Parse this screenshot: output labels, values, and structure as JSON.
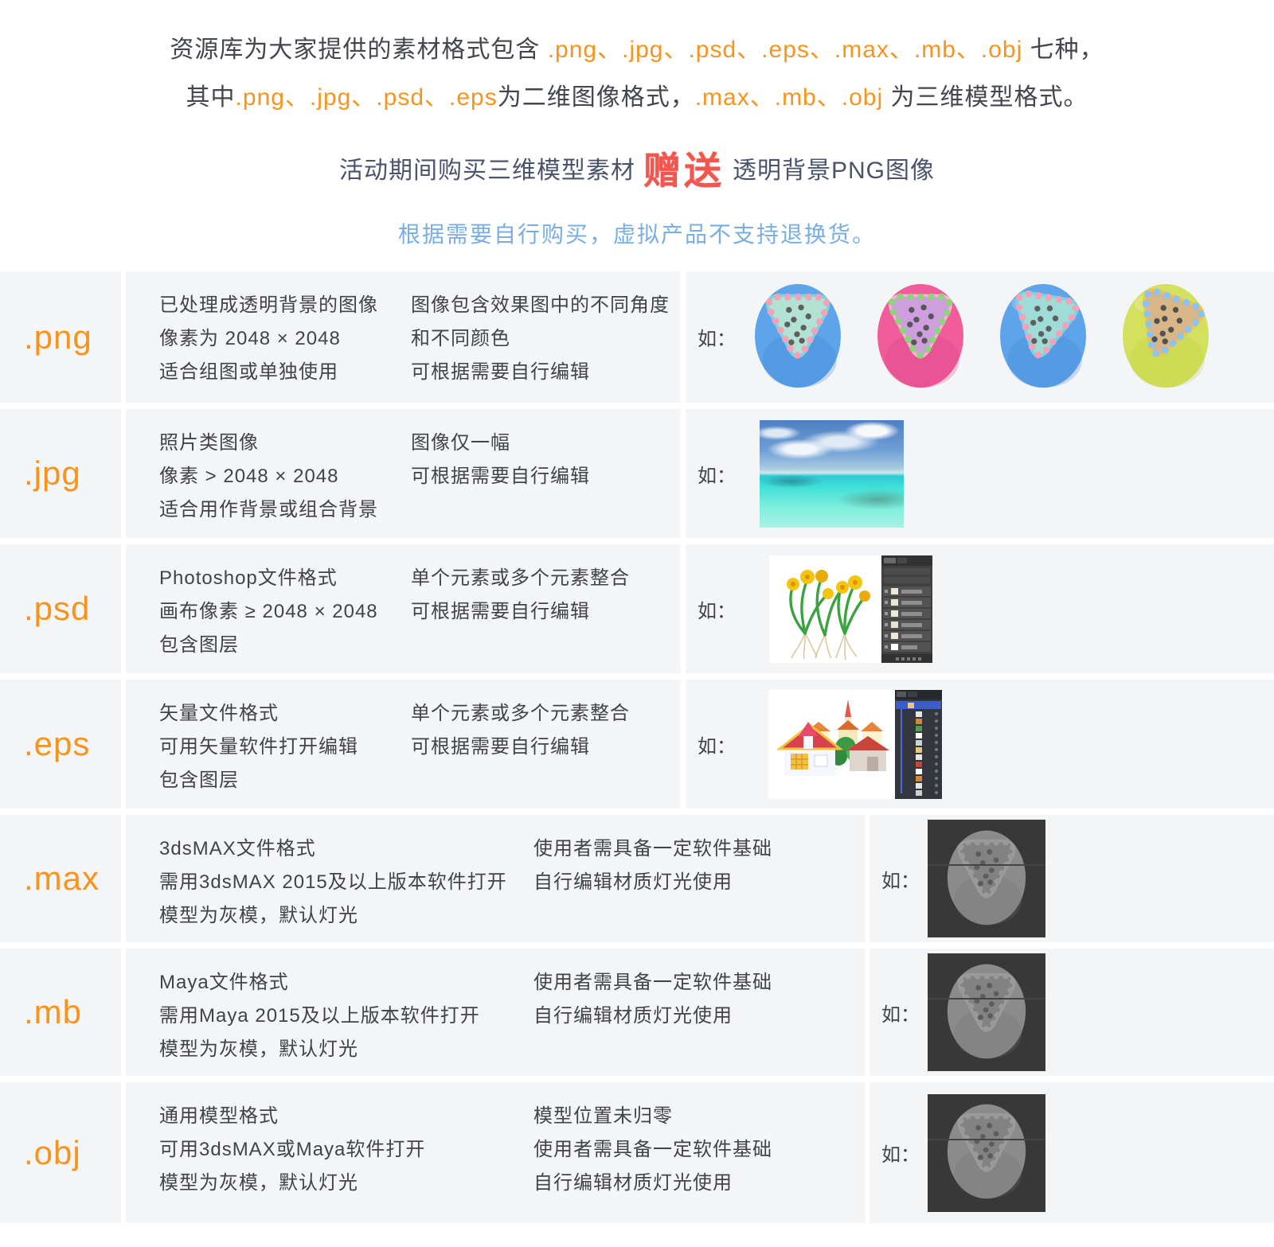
{
  "intro": {
    "l1_a": "资源库为大家提供的素材格式包含 ",
    "l1_b": ".png、.jpg、.psd、.eps、.max、.mb、.obj",
    "l1_c": " 七种，",
    "l2_a": "其中",
    "l2_b": ".png、.jpg、.psd、.eps",
    "l2_c": "为二维图像格式，",
    "l2_d": ".max、.mb、.obj",
    "l2_e": " 为三维模型格式。"
  },
  "promo": {
    "before": "活动期间购买三维模型素材",
    "gift": "赠送",
    "after": "透明背景PNG图像"
  },
  "notice": "根据需要自行购买，虚拟产品不支持退换货。",
  "rows": [
    {
      "ext": ".png",
      "col1": [
        "已处理成透明背景的图像",
        "像素为 2048 × 2048",
        "适合组图或单独使用"
      ],
      "col2": [
        "图像包含效果图中的不同角度",
        "和不同颜色",
        "可根据需要自行编辑"
      ],
      "example_label": "如："
    },
    {
      "ext": ".jpg",
      "col1": [
        "照片类图像",
        "像素 > 2048 × 2048",
        "适合用作背景或组合背景"
      ],
      "col2": [
        "图像仅一幅",
        "可根据需要自行编辑"
      ],
      "example_label": "如："
    },
    {
      "ext": ".psd",
      "col1": [
        "Photoshop文件格式",
        "画布像素 ≥ 2048 × 2048",
        "包含图层"
      ],
      "col2": [
        "单个元素或多个元素整合",
        "可根据需要自行编辑"
      ],
      "example_label": "如："
    },
    {
      "ext": ".eps",
      "col1": [
        "矢量文件格式",
        "可用矢量软件打开编辑",
        "包含图层"
      ],
      "col2": [
        "单个元素或多个元素整合",
        "可根据需要自行编辑"
      ],
      "example_label": "如："
    },
    {
      "ext": ".max",
      "col1": [
        "3dsMAX文件格式",
        "需用3dsMAX 2015及以上版本软件打开",
        "模型为灰模，默认灯光"
      ],
      "col2": [
        "使用者需具备一定软件基础",
        "自行编辑材质灯光使用"
      ],
      "example_label": "如："
    },
    {
      "ext": ".mb",
      "col1": [
        "Maya文件格式",
        "需用Maya 2015及以上版本软件打开",
        "模型为灰模，默认灯光"
      ],
      "col2": [
        "使用者需具备一定软件基础",
        "自行编辑材质灯光使用"
      ],
      "example_label": "如："
    },
    {
      "ext": ".obj",
      "col1": [
        "通用模型格式",
        "可用3dsMAX或Maya软件打开",
        "模型为灰模，默认灯光"
      ],
      "col2": [
        "模型位置未归零",
        "使用者需具备一定软件基础",
        "自行编辑材质灯光使用"
      ],
      "example_label": "如："
    }
  ],
  "colors": {
    "accent_orange": "#f7941e",
    "notice_blue": "#78aee4",
    "gift_red": "#f2564e",
    "row_bg": "#f4f5f7",
    "body_text": "#424347",
    "promo_text": "#49536b",
    "viewport_bg": "#383838"
  },
  "png_examples": {
    "balls": [
      {
        "body": "#5ea4ea",
        "body2": "#3c7fd0",
        "rim": "#6fd8e8",
        "inner": "#b2e2d4",
        "dots": "#f4a2b8",
        "core_dots": "#5f5f5f",
        "rot": 0
      },
      {
        "body": "#f25c9b",
        "body2": "#d83a80",
        "rim": "#f7b6cf",
        "inner": "#cf9ede",
        "dots": "#8ed47c",
        "core_dots": "#575757",
        "rot": 0
      },
      {
        "body": "#5ea4ea",
        "body2": "#3c7fd0",
        "rim": "#6fd8e8",
        "inner": "#9fdcd8",
        "dots": "#f4a2b8",
        "core_dots": "#5f5f5f",
        "rot": 10
      },
      {
        "body": "#d5e05e",
        "body2": "#b8cc3a",
        "rim": "#f2c24a",
        "inner": "#d9b688",
        "dots": "#8ac4f2",
        "core_dots": "#515151",
        "rot": 20
      }
    ]
  },
  "model_example": {
    "viewport_bg": "#383838",
    "palette": {
      "body": "#8b8b8b",
      "body2": "#6f6f6f",
      "rim": "#9c9c9c",
      "inner": "#828282",
      "dots": "#999999",
      "core_dots": "#5c5c5c",
      "rot": 0
    }
  }
}
